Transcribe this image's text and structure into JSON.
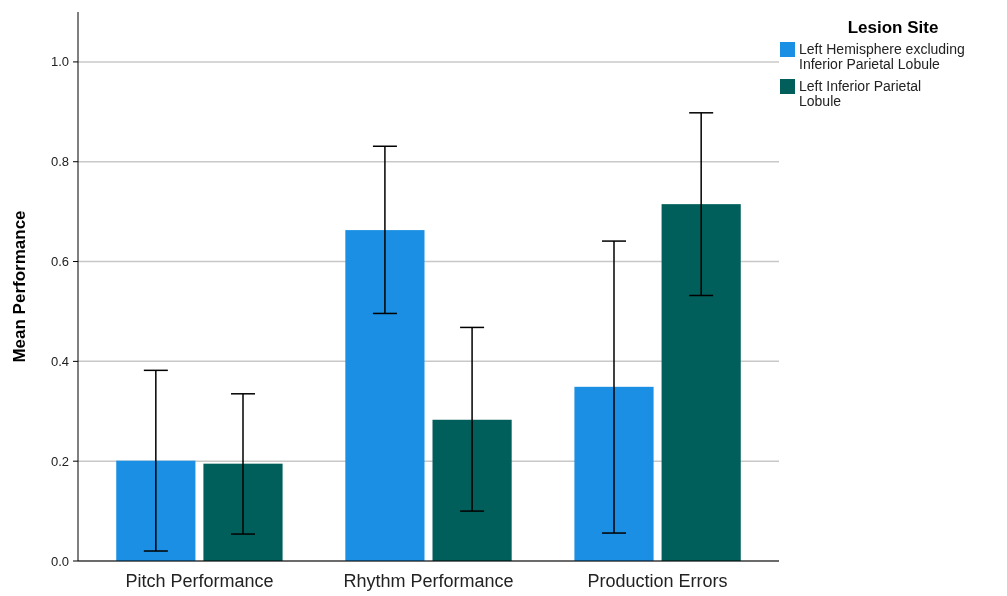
{
  "chart_data": {
    "type": "bar",
    "ylabel": "Mean Performance",
    "legend_title": "Lesion Site",
    "categories": [
      "Pitch Performance",
      "Rhythm Performance",
      "Production Errors"
    ],
    "series": [
      {
        "name": "Left Hemisphere excluding Inferior Parietal Lobule",
        "color": "#1a8fe3",
        "values": [
          0.201,
          0.663,
          0.349
        ],
        "errors": [
          [
            0.02,
            0.382
          ],
          [
            0.496,
            0.831
          ],
          [
            0.056,
            0.641
          ]
        ]
      },
      {
        "name": "Left Inferior Parietal Lobule",
        "color": "#005f5a",
        "values": [
          0.195,
          0.283,
          0.715
        ],
        "errors": [
          [
            0.054,
            0.335
          ],
          [
            0.1,
            0.468
          ],
          [
            0.532,
            0.898
          ]
        ]
      }
    ],
    "ylim": [
      0,
      1.1
    ],
    "yticks": [
      {
        "value": 0,
        "label": "0.0"
      },
      {
        "value": 0.2,
        "label": "0.2"
      },
      {
        "value": 0.4,
        "label": "0.4"
      },
      {
        "value": 0.6,
        "label": "0.6"
      },
      {
        "value": 0.8,
        "label": "0.8"
      },
      {
        "value": 1,
        "label": "1.0"
      }
    ],
    "grid": "y",
    "legend": "top right"
  }
}
